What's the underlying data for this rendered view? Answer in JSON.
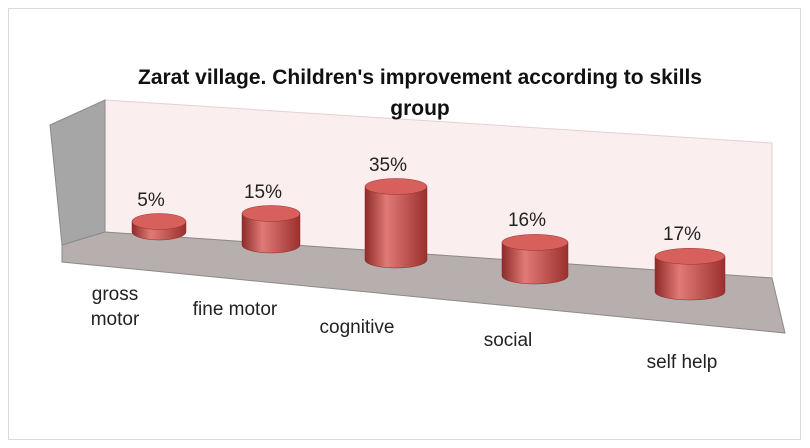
{
  "chart_data": {
    "type": "bar3d",
    "title": "Zarat village. Children's improvement according to skills group",
    "categories": [
      "gross motor",
      "fine motor",
      "cognitive",
      "social",
      "self help"
    ],
    "values": [
      5,
      15,
      35,
      16,
      17
    ],
    "value_labels": [
      "5%",
      "15%",
      "35%",
      "16%",
      "17%"
    ],
    "color": "#c0504d"
  }
}
